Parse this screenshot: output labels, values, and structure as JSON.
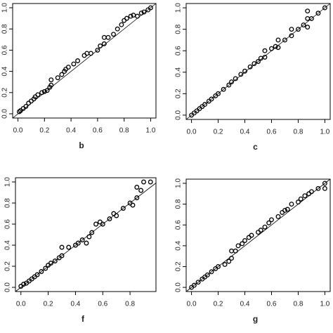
{
  "chart_data": [
    {
      "type": "scatter",
      "label": "b",
      "x": [
        0.01,
        0.02,
        0.04,
        0.06,
        0.08,
        0.1,
        0.12,
        0.13,
        0.15,
        0.18,
        0.2,
        0.22,
        0.24,
        0.25,
        0.25,
        0.3,
        0.33,
        0.35,
        0.36,
        0.38,
        0.42,
        0.45,
        0.5,
        0.52,
        0.55,
        0.6,
        0.62,
        0.65,
        0.65,
        0.68,
        0.72,
        0.75,
        0.78,
        0.8,
        0.82,
        0.85,
        0.87,
        0.9,
        0.93,
        0.95,
        0.98,
        1.0
      ],
      "y": [
        0.02,
        0.03,
        0.05,
        0.07,
        0.1,
        0.12,
        0.14,
        0.16,
        0.18,
        0.2,
        0.21,
        0.22,
        0.25,
        0.27,
        0.32,
        0.34,
        0.37,
        0.4,
        0.42,
        0.44,
        0.47,
        0.5,
        0.55,
        0.57,
        0.57,
        0.6,
        0.64,
        0.66,
        0.72,
        0.72,
        0.75,
        0.8,
        0.84,
        0.88,
        0.9,
        0.92,
        0.93,
        0.92,
        0.95,
        0.96,
        0.98,
        1.0
      ],
      "xlim": [
        -0.04,
        1.04
      ],
      "ylim": [
        -0.04,
        1.04
      ],
      "xticks": [
        {
          "value": 0,
          "label": "0.0"
        },
        0.2,
        0.4,
        0.6,
        0.8,
        {
          "value": 1,
          "label": "1.0"
        }
      ],
      "yticks": [
        {
          "value": 0,
          "label": "0.0"
        },
        0.2,
        0.4,
        0.6,
        0.8,
        {
          "value": 1,
          "label": "1.0"
        }
      ],
      "color": "#000000"
    },
    {
      "type": "scatter",
      "label": "c",
      "x": [
        0.0,
        0.02,
        0.04,
        0.06,
        0.08,
        0.1,
        0.13,
        0.15,
        0.18,
        0.2,
        0.24,
        0.28,
        0.3,
        0.33,
        0.37,
        0.4,
        0.44,
        0.47,
        0.5,
        0.52,
        0.55,
        0.55,
        0.6,
        0.63,
        0.65,
        0.65,
        0.7,
        0.75,
        0.75,
        0.8,
        0.84,
        0.87,
        0.87,
        0.87,
        0.9,
        0.95,
        1.0
      ],
      "y": [
        0.0,
        0.02,
        0.04,
        0.06,
        0.08,
        0.1,
        0.13,
        0.15,
        0.18,
        0.2,
        0.24,
        0.28,
        0.31,
        0.34,
        0.38,
        0.41,
        0.45,
        0.48,
        0.5,
        0.53,
        0.54,
        0.6,
        0.62,
        0.64,
        0.63,
        0.7,
        0.7,
        0.74,
        0.8,
        0.8,
        0.84,
        0.82,
        0.9,
        0.97,
        0.9,
        0.95,
        1.0
      ],
      "xlim": [
        -0.04,
        1.04
      ],
      "ylim": [
        -0.04,
        1.04
      ],
      "xticks": [
        {
          "value": 0,
          "label": "0.0"
        },
        0.2,
        0.4,
        0.6,
        0.8,
        {
          "value": 1,
          "label": "1.0"
        }
      ],
      "yticks": [
        {
          "value": 0,
          "label": "0.0"
        },
        0.2,
        0.4,
        0.6,
        0.8,
        {
          "value": 1,
          "label": "1.0"
        }
      ],
      "color": "#000000"
    },
    {
      "type": "scatter",
      "label": "f",
      "x": [
        0.0,
        0.02,
        0.04,
        0.06,
        0.08,
        0.1,
        0.12,
        0.15,
        0.18,
        0.2,
        0.22,
        0.25,
        0.28,
        0.3,
        0.3,
        0.35,
        0.4,
        0.42,
        0.45,
        0.48,
        0.5,
        0.52,
        0.55,
        0.58,
        0.6,
        0.65,
        0.68,
        0.7,
        0.75,
        0.8,
        0.82,
        0.85,
        0.85,
        0.88,
        0.9,
        0.95
      ],
      "y": [
        0.01,
        0.03,
        0.04,
        0.06,
        0.08,
        0.1,
        0.12,
        0.15,
        0.18,
        0.21,
        0.23,
        0.25,
        0.28,
        0.3,
        0.38,
        0.38,
        0.4,
        0.42,
        0.45,
        0.42,
        0.48,
        0.52,
        0.6,
        0.62,
        0.6,
        0.65,
        0.7,
        0.68,
        0.75,
        0.8,
        0.78,
        0.85,
        0.95,
        0.92,
        1.0,
        1.0
      ],
      "xlim": [
        -0.04,
        0.99
      ],
      "ylim": [
        -0.04,
        1.04
      ],
      "xticks": [
        {
          "value": 0,
          "label": "0.0"
        },
        0.2,
        0.4,
        0.6,
        0.8
      ],
      "yticks": [
        {
          "value": 0,
          "label": "0.0"
        },
        0.2,
        0.4,
        0.6,
        0.8,
        {
          "value": 1,
          "label": "1.0"
        }
      ],
      "color": "#000000"
    },
    {
      "type": "scatter",
      "label": "g",
      "x": [
        0.0,
        0.02,
        0.05,
        0.08,
        0.1,
        0.12,
        0.15,
        0.18,
        0.2,
        0.25,
        0.28,
        0.3,
        0.3,
        0.33,
        0.35,
        0.38,
        0.4,
        0.43,
        0.45,
        0.5,
        0.52,
        0.55,
        0.58,
        0.6,
        0.65,
        0.68,
        0.7,
        0.72,
        0.75,
        0.8,
        0.82,
        0.85,
        0.88,
        0.9,
        0.95,
        1.0,
        1.0
      ],
      "y": [
        0.0,
        0.02,
        0.05,
        0.08,
        0.1,
        0.12,
        0.15,
        0.18,
        0.2,
        0.22,
        0.25,
        0.28,
        0.35,
        0.35,
        0.4,
        0.42,
        0.45,
        0.48,
        0.5,
        0.53,
        0.55,
        0.58,
        0.62,
        0.65,
        0.68,
        0.72,
        0.74,
        0.75,
        0.8,
        0.82,
        0.85,
        0.88,
        0.9,
        0.92,
        0.95,
        0.95,
        1.0
      ],
      "xlim": [
        -0.04,
        1.04
      ],
      "ylim": [
        -0.04,
        1.04
      ],
      "xticks": [
        {
          "value": 0,
          "label": "0.0"
        },
        0.2,
        0.4,
        0.6,
        0.8,
        {
          "value": 1,
          "label": "1.0"
        }
      ],
      "yticks": [
        {
          "value": 0,
          "label": "0.0"
        },
        0.2,
        0.4,
        0.6,
        0.8,
        {
          "value": 1,
          "label": "1.0"
        }
      ],
      "color": "#000000"
    }
  ]
}
